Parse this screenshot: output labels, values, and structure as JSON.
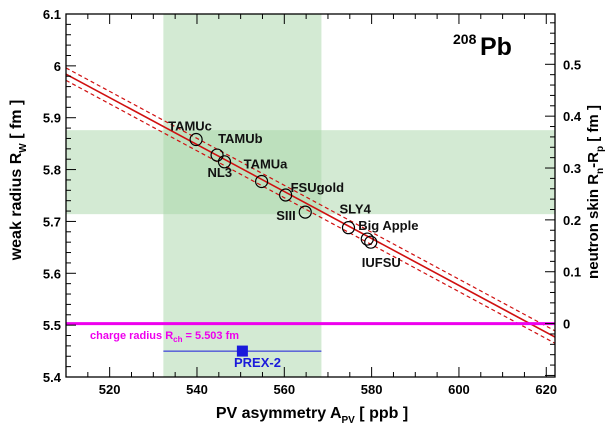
{
  "chart_data": {
    "type": "scatter",
    "xlabel_main": "PV asymmetry A",
    "xlabel_sub": "PV",
    "xlabel_unit": " [ ppb ]",
    "ylabel_main": "weak radius R",
    "ylabel_sub": "W",
    "ylabel_unit": " [ fm ]",
    "y2label_main": "neutron skin R",
    "y2label_sub1": "n",
    "y2label_mid": "-R",
    "y2label_sub2": "p",
    "y2label_unit": " [ fm ]",
    "nucleus_sup": "208",
    "nucleus_sym": "Pb",
    "xlim": [
      510,
      622
    ],
    "ylim": [
      5.4,
      6.1
    ],
    "y2lim": [
      -0.103,
      0.597
    ],
    "x_ticks": [
      520,
      540,
      560,
      580,
      600,
      620
    ],
    "x_tick_labels": [
      "520",
      "540",
      "560",
      "580",
      "600",
      "620"
    ],
    "y_ticks": [
      5.4,
      5.5,
      5.6,
      5.7,
      5.8,
      5.9,
      6.0,
      6.1
    ],
    "y_tick_labels": [
      "5.4",
      "5.5",
      "5.6",
      "5.7",
      "5.8",
      "5.9",
      "6",
      "6.1"
    ],
    "y2_ticks": [
      0,
      0.1,
      0.2,
      0.3,
      0.4,
      0.5
    ],
    "y2_tick_labels": [
      "0",
      "0.1",
      "0.2",
      "0.3",
      "0.4",
      "0.5"
    ],
    "fit_line": {
      "x": [
        510,
        622
      ],
      "y": [
        5.984,
        5.477
      ],
      "band": 0.012,
      "color": "#d01010"
    },
    "models": [
      {
        "name": "TAMUc",
        "x": 539.8,
        "y": 5.858
      },
      {
        "name": "TAMUb",
        "x": 544.6,
        "y": 5.828
      },
      {
        "name": "NL3",
        "x": 546.3,
        "y": 5.815
      },
      {
        "name": "TAMUa",
        "x": 554.8,
        "y": 5.777
      },
      {
        "name": "FSUgold",
        "x": 560.3,
        "y": 5.751
      },
      {
        "name": "SIII",
        "x": 564.8,
        "y": 5.718
      },
      {
        "name": "SLY4",
        "x": 574.7,
        "y": 5.688
      },
      {
        "name": "Big Apple",
        "x": 579.0,
        "y": 5.666
      },
      {
        "name": "IUFSU",
        "x": 579.8,
        "y": 5.66
      }
    ],
    "charge_radius": {
      "label_main": "charge radius R",
      "label_sub": "ch",
      "label_value": " = 5.503 fm",
      "y": 5.503,
      "color": "#ee00ee"
    },
    "prex2": {
      "label": "PREX-2",
      "x": 550.4,
      "y": 5.45,
      "xerr_low": 532.3,
      "xerr_high": 568.5,
      "color": "#1a1adb"
    },
    "band_y": [
      5.714,
      5.876
    ],
    "band_x": [
      532.3,
      568.5
    ],
    "band_color": "#a8d5a8"
  }
}
